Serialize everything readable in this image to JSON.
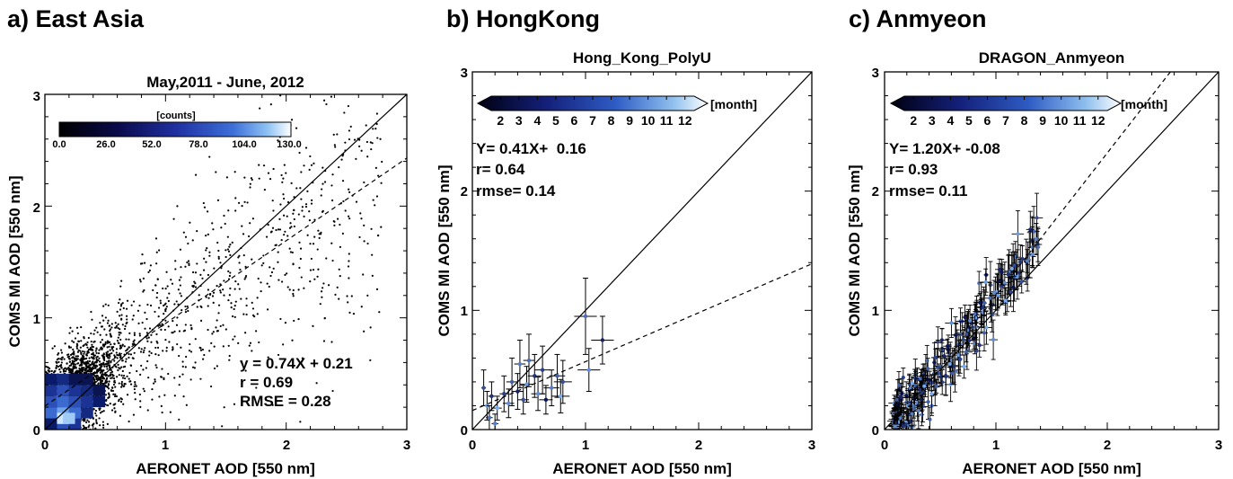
{
  "chart_data": [
    {
      "type": "scatter",
      "panel_label": "a) East Asia",
      "title": "May,2011 - June, 2012",
      "xlabel": "AERONET AOD [550 nm]",
      "ylabel": "COMS MI AOD [550 nm]",
      "xlim": [
        0,
        3
      ],
      "ylim": [
        0,
        3
      ],
      "xticks": [
        "0",
        "1",
        "2",
        "3"
      ],
      "yticks": [
        "0",
        "1",
        "2",
        "3"
      ],
      "colorbar": {
        "label": "[counts]",
        "ticks": [
          "0.0",
          "26.0",
          "52.0",
          "78.0",
          "104.0",
          "130.0"
        ],
        "range": [
          0,
          130
        ]
      },
      "fit": {
        "slope": 0.74,
        "intercept": 0.21
      },
      "stats": [
        "y = 0.74X + 0.21",
        "r = 0.69",
        "RMSE = 0.28"
      ]
    },
    {
      "type": "scatter",
      "panel_label": "b) HongKong",
      "title": "Hong_Kong_PolyU",
      "xlabel": "AERONET AOD [550 nm]",
      "ylabel": "COMS MI AOD [550 nm]",
      "xlim": [
        0,
        3
      ],
      "ylim": [
        0,
        3
      ],
      "xticks": [
        "0",
        "1",
        "2",
        "3"
      ],
      "yticks": [
        "0",
        "1",
        "2",
        "3"
      ],
      "colorbar": {
        "label": "[month]",
        "ticks": [
          "2",
          "3",
          "4",
          "5",
          "6",
          "7",
          "8",
          "9",
          "10",
          "11",
          "12"
        ]
      },
      "fit": {
        "slope": 0.41,
        "intercept": 0.16
      },
      "stats": [
        "Y= 0.41X+  0.16",
        "r= 0.64",
        "rmse= 0.14"
      ],
      "points": [
        {
          "x": 0.1,
          "y": 0.35,
          "ex": 0.02,
          "ey": 0.15,
          "m": 6
        },
        {
          "x": 0.13,
          "y": 0.2,
          "ex": 0.03,
          "ey": 0.12,
          "m": 11
        },
        {
          "x": 0.15,
          "y": 0.1,
          "ex": 0.03,
          "ey": 0.1,
          "m": 8
        },
        {
          "x": 0.17,
          "y": 0.28,
          "ex": 0.03,
          "ey": 0.12,
          "m": 4
        },
        {
          "x": 0.2,
          "y": 0.05,
          "ex": 0.03,
          "ey": 0.08,
          "m": 9
        },
        {
          "x": 0.22,
          "y": 0.18,
          "ex": 0.04,
          "ey": 0.1,
          "m": 12
        },
        {
          "x": 0.28,
          "y": 0.3,
          "ex": 0.04,
          "ey": 0.15,
          "m": 5
        },
        {
          "x": 0.32,
          "y": 0.22,
          "ex": 0.05,
          "ey": 0.12,
          "m": 10
        },
        {
          "x": 0.35,
          "y": 0.4,
          "ex": 0.05,
          "ey": 0.2,
          "m": 7
        },
        {
          "x": 0.4,
          "y": 0.32,
          "ex": 0.05,
          "ey": 0.15,
          "m": 3
        },
        {
          "x": 0.42,
          "y": 0.55,
          "ex": 0.05,
          "ey": 0.2,
          "m": 9
        },
        {
          "x": 0.45,
          "y": 0.25,
          "ex": 0.05,
          "ey": 0.12,
          "m": 6
        },
        {
          "x": 0.48,
          "y": 0.38,
          "ex": 0.06,
          "ey": 0.15,
          "m": 11
        },
        {
          "x": 0.5,
          "y": 0.58,
          "ex": 0.05,
          "ey": 0.22,
          "m": 8
        },
        {
          "x": 0.55,
          "y": 0.45,
          "ex": 0.06,
          "ey": 0.18,
          "m": 4
        },
        {
          "x": 0.58,
          "y": 0.3,
          "ex": 0.06,
          "ey": 0.14,
          "m": 10
        },
        {
          "x": 0.62,
          "y": 0.5,
          "ex": 0.07,
          "ey": 0.2,
          "m": 5
        },
        {
          "x": 0.65,
          "y": 0.25,
          "ex": 0.06,
          "ey": 0.12,
          "m": 2
        },
        {
          "x": 0.7,
          "y": 0.35,
          "ex": 0.07,
          "ey": 0.15,
          "m": 9
        },
        {
          "x": 0.75,
          "y": 0.45,
          "ex": 0.07,
          "ey": 0.18,
          "m": 7
        },
        {
          "x": 0.78,
          "y": 0.28,
          "ex": 0.08,
          "ey": 0.14,
          "m": 12
        },
        {
          "x": 0.8,
          "y": 0.4,
          "ex": 0.08,
          "ey": 0.18,
          "m": 6
        },
        {
          "x": 1.0,
          "y": 0.95,
          "ex": 0.1,
          "ey": 0.32,
          "m": 8
        },
        {
          "x": 1.03,
          "y": 0.5,
          "ex": 0.1,
          "ey": 0.18,
          "m": 10
        },
        {
          "x": 1.15,
          "y": 0.75,
          "ex": 0.1,
          "ey": 0.2,
          "m": 3
        }
      ]
    },
    {
      "type": "scatter",
      "panel_label": "c) Anmyeon",
      "title": "DRAGON_Anmyeon",
      "xlabel": "AERONET AOD [550 nm]",
      "ylabel": "COMS MI AOD [550 nm]",
      "xlim": [
        0,
        3
      ],
      "ylim": [
        0,
        3
      ],
      "xticks": [
        "0",
        "1",
        "2",
        "3"
      ],
      "yticks": [
        "0",
        "1",
        "2",
        "3"
      ],
      "colorbar": {
        "label": "[month]",
        "ticks": [
          "2",
          "3",
          "4",
          "5",
          "6",
          "7",
          "8",
          "9",
          "10",
          "11",
          "12"
        ]
      },
      "fit": {
        "slope": 1.2,
        "intercept": -0.08
      },
      "stats": [
        "Y= 1.20X+ -0.08",
        "r= 0.93",
        "rmse= 0.11"
      ]
    }
  ]
}
